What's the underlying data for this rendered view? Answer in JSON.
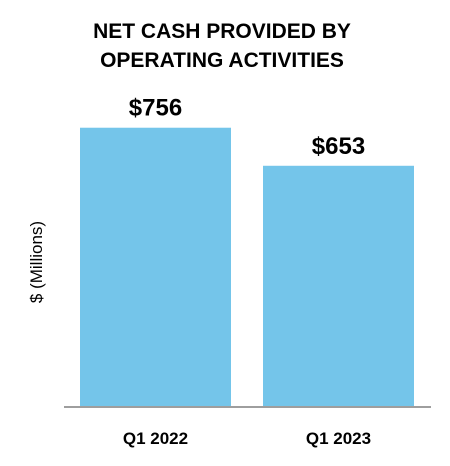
{
  "chart_data": {
    "type": "bar",
    "title_lines": [
      "NET CASH PROVIDED BY",
      "OPERATING ACTIVITIES"
    ],
    "ylabel": "$ (Millions)",
    "xlabel": "",
    "categories": [
      "Q1 2022",
      "Q1 2023"
    ],
    "values": [
      756,
      653
    ],
    "data_labels": [
      "$756",
      "$653"
    ],
    "ylim": [
      0,
      850
    ],
    "grid": false,
    "legend": "none",
    "colors": {
      "bar": "#74C5EA",
      "axis": "#9E9E9E",
      "text": "#000000"
    }
  }
}
